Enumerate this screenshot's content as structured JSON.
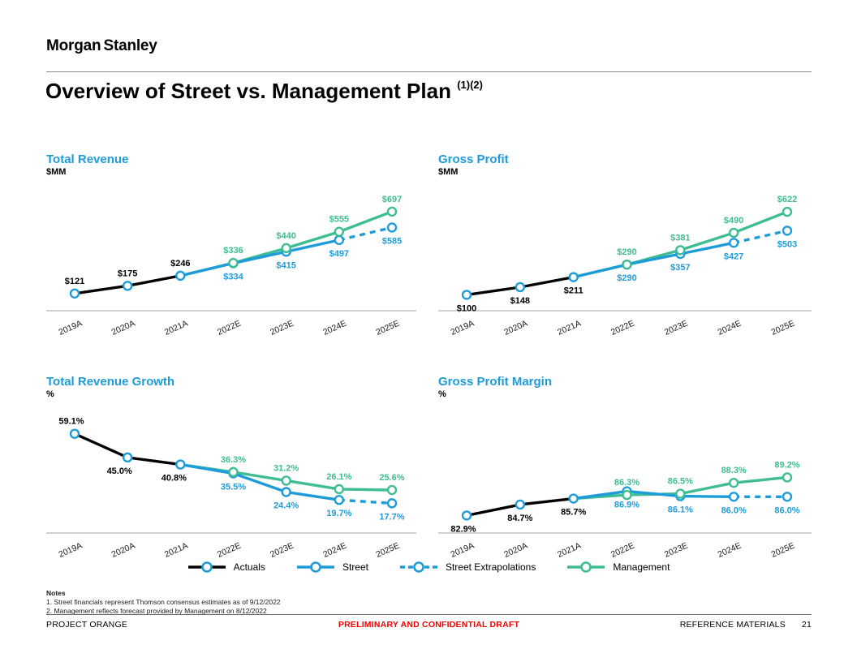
{
  "header": {
    "logo": "Morgan Stanley",
    "title": "Overview of Street vs. Management Plan",
    "title_superscript": "(1)(2)"
  },
  "colors": {
    "blue": "#1E9CD9",
    "green": "#3EBD92",
    "black": "#000000",
    "red": "#F40000",
    "axis": "#b3b3b3",
    "tick_text": "#1a1a1a"
  },
  "legend": [
    {
      "label": "Actuals",
      "color": "black",
      "marker_color": "blue",
      "dash": false
    },
    {
      "label": "Street",
      "color": "blue",
      "marker_color": "blue",
      "dash": false
    },
    {
      "label": "Street Extrapolations",
      "color": "blue",
      "marker_color": "blue",
      "dash": true
    },
    {
      "label": "Management",
      "color": "green",
      "marker_color": "green",
      "dash": false
    }
  ],
  "notes": {
    "heading": "Notes",
    "items": [
      "1.   Street financials represent Thomson consensus estimates as of 9/12/2022",
      "2.   Management reflects forecast provided by Management on 8/12/2022"
    ]
  },
  "footer": {
    "left": "PROJECT ORANGE",
    "center": "PRELIMINARY AND CONFIDENTIAL DRAFT",
    "right": "REFERENCE MATERIALS",
    "page_number": "21"
  },
  "chart_data": [
    {
      "type": "line",
      "title": "Total Revenue",
      "unit": "$MM",
      "categories": [
        "2019A",
        "2020A",
        "2021A",
        "2022E",
        "2023E",
        "2024E",
        "2025E"
      ],
      "ylim": [
        0,
        850
      ],
      "grid": false,
      "series": [
        {
          "name": "Actuals",
          "color": "black",
          "marker_color": "blue",
          "dash": false,
          "points": [
            {
              "x": 0,
              "y": 121,
              "label": "$121",
              "side": "above"
            },
            {
              "x": 1,
              "y": 175,
              "label": "$175",
              "side": "above"
            },
            {
              "x": 2,
              "y": 246,
              "label": "$246",
              "side": "above"
            }
          ]
        },
        {
          "name": "Street",
          "color": "blue",
          "marker_color": "blue",
          "dash": false,
          "points": [
            {
              "x": 2,
              "y": 246,
              "marker": false
            },
            {
              "x": 3,
              "y": 334,
              "label": "$334",
              "side": "below"
            },
            {
              "x": 4,
              "y": 415,
              "label": "$415",
              "side": "below"
            },
            {
              "x": 5,
              "y": 497,
              "label": "$497",
              "side": "below"
            }
          ]
        },
        {
          "name": "Street Extrapolations",
          "color": "blue",
          "marker_color": "blue",
          "dash": true,
          "points": [
            {
              "x": 5,
              "y": 497,
              "marker": false
            },
            {
              "x": 6,
              "y": 585,
              "label": "$585",
              "side": "below"
            }
          ]
        },
        {
          "name": "Management",
          "color": "green",
          "marker_color": "green",
          "dash": false,
          "points": [
            {
              "x": 2,
              "y": 246,
              "marker": false
            },
            {
              "x": 3,
              "y": 336,
              "label": "$336",
              "side": "above"
            },
            {
              "x": 4,
              "y": 440,
              "label": "$440",
              "side": "above"
            },
            {
              "x": 5,
              "y": 555,
              "label": "$555",
              "side": "above"
            },
            {
              "x": 6,
              "y": 697,
              "label": "$697",
              "side": "above"
            }
          ]
        }
      ]
    },
    {
      "type": "line",
      "title": "Gross Profit",
      "unit": "$MM",
      "categories": [
        "2019A",
        "2020A",
        "2021A",
        "2022E",
        "2023E",
        "2024E",
        "2025E"
      ],
      "ylim": [
        0,
        760
      ],
      "grid": false,
      "series": [
        {
          "name": "Actuals",
          "color": "black",
          "marker_color": "blue",
          "dash": false,
          "points": [
            {
              "x": 0,
              "y": 100,
              "label": "$100",
              "side": "below"
            },
            {
              "x": 1,
              "y": 148,
              "label": "$148",
              "side": "below"
            },
            {
              "x": 2,
              "y": 211,
              "label": "$211",
              "side": "below"
            }
          ]
        },
        {
          "name": "Street",
          "color": "blue",
          "marker_color": "blue",
          "dash": false,
          "points": [
            {
              "x": 2,
              "y": 211,
              "marker": false
            },
            {
              "x": 3,
              "y": 290,
              "label": "$290",
              "side": "below"
            },
            {
              "x": 4,
              "y": 357,
              "label": "$357",
              "side": "below"
            },
            {
              "x": 5,
              "y": 427,
              "label": "$427",
              "side": "below"
            }
          ]
        },
        {
          "name": "Street Extrapolations",
          "color": "blue",
          "marker_color": "blue",
          "dash": true,
          "points": [
            {
              "x": 5,
              "y": 427,
              "marker": false
            },
            {
              "x": 6,
              "y": 503,
              "label": "$503",
              "side": "below"
            }
          ]
        },
        {
          "name": "Management",
          "color": "green",
          "marker_color": "green",
          "dash": false,
          "points": [
            {
              "x": 2,
              "y": 211,
              "marker": false
            },
            {
              "x": 3,
              "y": 290,
              "label": "$290",
              "side": "above"
            },
            {
              "x": 4,
              "y": 381,
              "label": "$381",
              "side": "above"
            },
            {
              "x": 5,
              "y": 490,
              "label": "$490",
              "side": "above"
            },
            {
              "x": 6,
              "y": 622,
              "label": "$622",
              "side": "above"
            }
          ]
        }
      ]
    },
    {
      "type": "line",
      "title": "Total Revenue Growth",
      "unit": "%",
      "categories": [
        "2019A",
        "2020A",
        "2021A",
        "2022E",
        "2023E",
        "2024E",
        "2025E"
      ],
      "ylim": [
        0,
        72
      ],
      "grid": false,
      "series": [
        {
          "name": "Actuals",
          "color": "black",
          "marker_color": "blue",
          "dash": false,
          "points": [
            {
              "x": 0,
              "y": 59.1,
              "label": "59.1%",
              "side": "above",
              "dx": -4
            },
            {
              "x": 1,
              "y": 45.0,
              "label": "45.0%",
              "side": "below",
              "dx": -10
            },
            {
              "x": 2,
              "y": 40.8,
              "label": "40.8%",
              "side": "below",
              "dx": -8
            }
          ]
        },
        {
          "name": "Street",
          "color": "blue",
          "marker_color": "blue",
          "dash": false,
          "points": [
            {
              "x": 2,
              "y": 40.8,
              "marker": false
            },
            {
              "x": 3,
              "y": 35.5,
              "label": "35.5%",
              "side": "below"
            },
            {
              "x": 4,
              "y": 24.4,
              "label": "24.4%",
              "side": "below"
            },
            {
              "x": 5,
              "y": 19.7,
              "label": "19.7%",
              "side": "below"
            }
          ]
        },
        {
          "name": "Street Extrapolations",
          "color": "blue",
          "marker_color": "blue",
          "dash": true,
          "points": [
            {
              "x": 5,
              "y": 19.7,
              "marker": false
            },
            {
              "x": 6,
              "y": 17.7,
              "label": "17.7%",
              "side": "below"
            }
          ]
        },
        {
          "name": "Management",
          "color": "green",
          "marker_color": "green",
          "dash": false,
          "points": [
            {
              "x": 2,
              "y": 40.8,
              "marker": false
            },
            {
              "x": 3,
              "y": 36.3,
              "label": "36.3%",
              "side": "above"
            },
            {
              "x": 4,
              "y": 31.2,
              "label": "31.2%",
              "side": "above"
            },
            {
              "x": 5,
              "y": 26.1,
              "label": "26.1%",
              "side": "above"
            },
            {
              "x": 6,
              "y": 25.6,
              "label": "25.6%",
              "side": "above"
            }
          ]
        }
      ]
    },
    {
      "type": "line",
      "title": "Gross Profit Margin",
      "unit": "%",
      "categories": [
        "2019A",
        "2020A",
        "2021A",
        "2022E",
        "2023E",
        "2024E",
        "2025E"
      ],
      "ylim": [
        80,
        100
      ],
      "grid": false,
      "series": [
        {
          "name": "Actuals",
          "color": "black",
          "marker_color": "blue",
          "dash": false,
          "points": [
            {
              "x": 0,
              "y": 82.9,
              "label": "82.9%",
              "side": "below",
              "dx": -4
            },
            {
              "x": 1,
              "y": 84.7,
              "label": "84.7%",
              "side": "below"
            },
            {
              "x": 2,
              "y": 85.7,
              "label": "85.7%",
              "side": "below"
            }
          ]
        },
        {
          "name": "Street",
          "color": "blue",
          "marker_color": "blue",
          "dash": false,
          "points": [
            {
              "x": 2,
              "y": 85.7,
              "marker": false
            },
            {
              "x": 3,
              "y": 86.9,
              "label": "86.9%",
              "side": "below"
            },
            {
              "x": 4,
              "y": 86.1,
              "label": "86.1%",
              "side": "below"
            },
            {
              "x": 5,
              "y": 86.0,
              "label": "86.0%",
              "side": "below"
            }
          ]
        },
        {
          "name": "Street Extrapolations",
          "color": "blue",
          "marker_color": "blue",
          "dash": true,
          "points": [
            {
              "x": 5,
              "y": 86.0,
              "marker": false
            },
            {
              "x": 6,
              "y": 86.0,
              "label": "86.0%",
              "side": "below"
            }
          ]
        },
        {
          "name": "Management",
          "color": "green",
          "marker_color": "green",
          "dash": false,
          "points": [
            {
              "x": 2,
              "y": 85.7,
              "marker": false
            },
            {
              "x": 3,
              "y": 86.3,
              "label": "86.3%",
              "side": "above"
            },
            {
              "x": 4,
              "y": 86.5,
              "label": "86.5%",
              "side": "above"
            },
            {
              "x": 5,
              "y": 88.3,
              "label": "88.3%",
              "side": "above"
            },
            {
              "x": 6,
              "y": 89.2,
              "label": "89.2%",
              "side": "above"
            }
          ]
        }
      ]
    }
  ]
}
